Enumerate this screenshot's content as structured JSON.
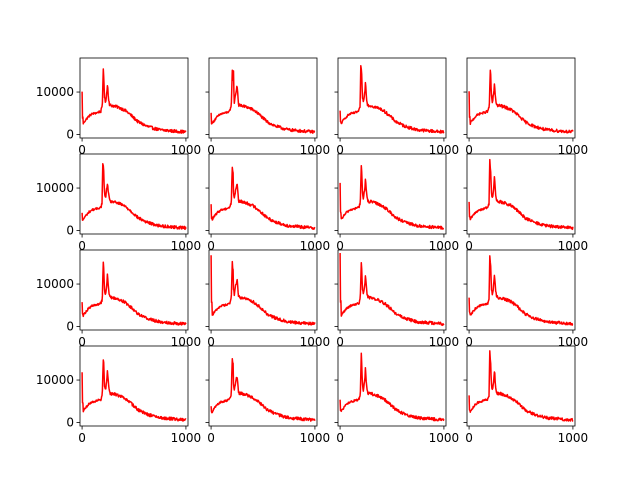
{
  "figure": {
    "rows": 4,
    "cols": 4,
    "sharey": true
  },
  "chart_data": {
    "type": "line",
    "title": "",
    "xlabel": "",
    "ylabel": "",
    "xlim": [
      -20,
      1020
    ],
    "ylim": [
      -800,
      18000
    ],
    "x_ticks": [
      {
        "value": 0,
        "label": "0"
      },
      {
        "value": 1000,
        "label": "1000"
      }
    ],
    "y_ticks": [
      {
        "value": 0,
        "label": "0"
      },
      {
        "value": 10000,
        "label": "10000"
      }
    ],
    "grid": false,
    "legend": "none",
    "color": "#ff0000",
    "profile_x": [
      0,
      10,
      20,
      40,
      60,
      80,
      100,
      120,
      140,
      160,
      180,
      195,
      205,
      215,
      225,
      235,
      245,
      255,
      265,
      280,
      300,
      320,
      340,
      360,
      380,
      400,
      430,
      460,
      500,
      540,
      580,
      620,
      660,
      700,
      750,
      800,
      850,
      900,
      950,
      1000
    ],
    "profile_y": [
      2000,
      2500,
      3000,
      3600,
      4200,
      4600,
      4900,
      5000,
      5100,
      5300,
      5500,
      6500,
      16000,
      9000,
      7500,
      9500,
      10500,
      8500,
      7000,
      6800,
      6800,
      6600,
      6500,
      6300,
      6100,
      5900,
      5400,
      4800,
      3900,
      3000,
      2500,
      2000,
      1700,
      1400,
      1100,
      1000,
      900,
      800,
      700,
      650
    ],
    "panels": [
      {
        "row": 1,
        "col": 1,
        "start_value": 10000,
        "peak_value": 17000,
        "peak_x": 205,
        "second_peak_value": 12000,
        "second_peak_x": 245
      },
      {
        "row": 1,
        "col": 2,
        "start_value": 5000,
        "peak_value": 16500,
        "peak_x": 215,
        "second_peak_value": 12000,
        "second_peak_x": 250
      },
      {
        "row": 1,
        "col": 3,
        "start_value": 5500,
        "peak_value": 16000,
        "peak_x": 200,
        "second_peak_value": 12500,
        "second_peak_x": 245
      },
      {
        "row": 1,
        "col": 4,
        "start_value": 10000,
        "peak_value": 16500,
        "peak_x": 205,
        "second_peak_value": 12000,
        "second_peak_x": 245
      },
      {
        "row": 2,
        "col": 1,
        "start_value": 4000,
        "peak_value": 16000,
        "peak_x": 200,
        "second_peak_value": 11500,
        "second_peak_x": 245
      },
      {
        "row": 2,
        "col": 2,
        "start_value": 6000,
        "peak_value": 16500,
        "peak_x": 210,
        "second_peak_value": 11500,
        "second_peak_x": 250
      },
      {
        "row": 2,
        "col": 3,
        "start_value": 11000,
        "peak_value": 16500,
        "peak_x": 205,
        "second_peak_value": 12500,
        "second_peak_x": 245
      },
      {
        "row": 2,
        "col": 4,
        "start_value": 6500,
        "peak_value": 17000,
        "peak_x": 200,
        "second_peak_value": 13000,
        "second_peak_x": 245
      },
      {
        "row": 3,
        "col": 1,
        "start_value": 6000,
        "peak_value": 16500,
        "peak_x": 205,
        "second_peak_value": 12500,
        "second_peak_x": 245
      },
      {
        "row": 3,
        "col": 2,
        "start_value": 17000,
        "peak_value": 16000,
        "peak_x": 210,
        "second_peak_value": 11500,
        "second_peak_x": 250
      },
      {
        "row": 3,
        "col": 3,
        "start_value": 17500,
        "peak_value": 16500,
        "peak_x": 205,
        "second_peak_value": 12500,
        "second_peak_x": 245
      },
      {
        "row": 3,
        "col": 4,
        "start_value": 7000,
        "peak_value": 16500,
        "peak_x": 200,
        "second_peak_value": 12500,
        "second_peak_x": 245
      },
      {
        "row": 4,
        "col": 1,
        "start_value": 12000,
        "peak_value": 16000,
        "peak_x": 205,
        "second_peak_value": 12500,
        "second_peak_x": 245
      },
      {
        "row": 4,
        "col": 2,
        "start_value": 4000,
        "peak_value": 16500,
        "peak_x": 210,
        "second_peak_value": 11500,
        "second_peak_x": 250
      },
      {
        "row": 4,
        "col": 3,
        "start_value": 5500,
        "peak_value": 17500,
        "peak_x": 205,
        "second_peak_value": 13000,
        "second_peak_x": 245
      },
      {
        "row": 4,
        "col": 4,
        "start_value": 6500,
        "peak_value": 17000,
        "peak_x": 200,
        "second_peak_value": 12500,
        "second_peak_x": 245
      }
    ]
  }
}
